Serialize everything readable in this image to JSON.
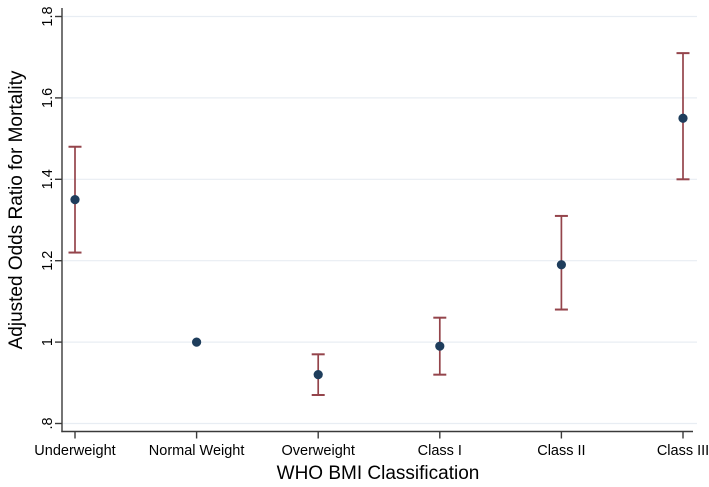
{
  "chart_data": {
    "type": "scatter",
    "subtype": "point-estimates-with-error-bars",
    "title": "",
    "xlabel": "WHO BMI Classification",
    "ylabel": "Adjusted Odds Ratio for Mortality",
    "categories": [
      "Underweight",
      "Normal Weight",
      "Overweight",
      "Class I",
      "Class II",
      "Class III"
    ],
    "series": [
      {
        "name": "Adjusted Odds Ratio",
        "values": [
          1.35,
          1.0,
          0.92,
          0.99,
          1.19,
          1.55
        ],
        "ci_low": [
          1.22,
          null,
          0.87,
          0.92,
          1.08,
          1.4
        ],
        "ci_high": [
          1.48,
          null,
          0.97,
          1.06,
          1.31,
          1.71
        ]
      }
    ],
    "y_tick_labels": [
      ".8",
      "1",
      "1.2",
      "1.4",
      "1.6",
      "1.8"
    ],
    "y_tick_values": [
      0.8,
      1.0,
      1.2,
      1.4,
      1.6,
      1.8
    ],
    "ylim": [
      0.78,
      1.82
    ],
    "grid": "horizontal",
    "legend_position": "none",
    "colors": {
      "marker": "#1e3d5c",
      "error_bar": "#94444b",
      "gridline": "#e8edf3",
      "axis": "#3a3a3a",
      "text": "#000000",
      "background": "#ffffff"
    }
  }
}
